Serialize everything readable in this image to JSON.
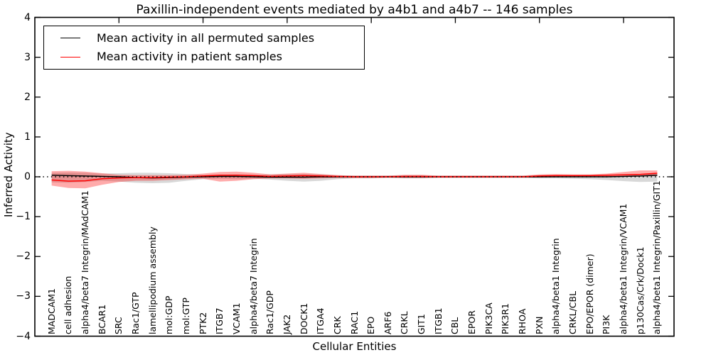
{
  "chart_data": {
    "type": "line",
    "title": "Paxillin-independent events mediated by a4b1 and a4b7 -- 146 samples",
    "xlabel": "Cellular Entities",
    "ylabel": "Inferred Activity",
    "ylim": [
      -4,
      4
    ],
    "xlim": [
      0,
      38
    ],
    "yticks": [
      -4,
      -3,
      -2,
      -1,
      0,
      1,
      2,
      3,
      4
    ],
    "xticks": [
      5,
      10,
      15,
      20,
      25,
      30,
      35
    ],
    "grid": false,
    "zero_line": {
      "y": 0,
      "style": "dotted",
      "color": "#000000"
    },
    "legend_position": "upper left",
    "categories": [
      "MADCAM1",
      "cell adhesion",
      "alpha4/beta7 Integrin/MAdCAM1",
      "BCAR1",
      "SRC",
      "Rac1/GTP",
      "lamellipodium assembly",
      "mol:GDP",
      "mol:GTP",
      "PTK2",
      "ITGB7",
      "VCAM1",
      "alpha4/beta7 Integrin",
      "Rac1/GDP",
      "JAK2",
      "DOCK1",
      "ITGA4",
      "CRK",
      "RAC1",
      "EPO",
      "ARF6",
      "CRKL",
      "GIT1",
      "ITGB1",
      "CBL",
      "EPOR",
      "PIK3CA",
      "PIK3R1",
      "RHOA",
      "PXN",
      "alpha4/beta1 Integrin",
      "CRKL/CBL",
      "EPO/EPOR (dimer)",
      "PI3K",
      "alpha4/beta1 Integrin/VCAM1",
      "p130Cas/Crk/Dock1",
      "alpha4/beta1 Integrin/Paxillin/GIT1"
    ],
    "series": [
      {
        "name": "Mean activity in all permuted samples",
        "color": "#000000",
        "band_color": "rgba(125,125,125,0.30)",
        "values": [
          0.04,
          0.03,
          0.02,
          0.01,
          0.0,
          -0.02,
          -0.03,
          -0.02,
          -0.01,
          0.0,
          0.01,
          0.01,
          0.0,
          -0.01,
          -0.01,
          -0.01,
          0.0,
          0.0,
          0.0,
          0.0,
          0.0,
          0.0,
          0.0,
          0.0,
          0.0,
          0.0,
          0.0,
          0.0,
          0.0,
          0.0,
          0.0,
          0.0,
          0.0,
          0.0,
          0.01,
          0.02,
          0.04
        ],
        "band_lo": [
          -0.14,
          -0.15,
          -0.13,
          -0.1,
          -0.12,
          -0.15,
          -0.16,
          -0.15,
          -0.1,
          -0.06,
          -0.05,
          -0.06,
          -0.05,
          -0.07,
          -0.1,
          -0.12,
          -0.1,
          -0.06,
          -0.04,
          -0.04,
          -0.03,
          -0.04,
          -0.04,
          -0.03,
          -0.03,
          -0.03,
          -0.03,
          -0.03,
          -0.03,
          -0.04,
          -0.04,
          -0.05,
          -0.06,
          -0.08,
          -0.11,
          -0.13,
          -0.12
        ],
        "band_hi": [
          0.1,
          0.11,
          0.1,
          0.08,
          0.09,
          0.1,
          0.1,
          0.09,
          0.07,
          0.05,
          0.05,
          0.06,
          0.05,
          0.06,
          0.07,
          0.07,
          0.06,
          0.04,
          0.03,
          0.03,
          0.03,
          0.04,
          0.04,
          0.03,
          0.03,
          0.03,
          0.03,
          0.03,
          0.03,
          0.04,
          0.04,
          0.04,
          0.05,
          0.05,
          0.06,
          0.07,
          0.09
        ]
      },
      {
        "name": "Mean activity in patient samples",
        "color": "#ff0000",
        "band_color": "rgba(255,0,0,0.33)",
        "values": [
          -0.08,
          -0.11,
          -0.1,
          -0.05,
          -0.03,
          -0.02,
          -0.02,
          -0.01,
          0.0,
          0.02,
          0.04,
          0.04,
          0.03,
          0.01,
          0.02,
          0.03,
          0.02,
          0.01,
          0.0,
          0.0,
          0.0,
          0.01,
          0.01,
          0.0,
          0.0,
          0.0,
          0.0,
          0.0,
          0.0,
          0.02,
          0.03,
          0.03,
          0.03,
          0.04,
          0.05,
          0.06,
          0.09
        ],
        "band_lo": [
          -0.22,
          -0.28,
          -0.29,
          -0.2,
          -0.13,
          -0.1,
          -0.1,
          -0.08,
          -0.06,
          -0.05,
          -0.12,
          -0.1,
          -0.06,
          -0.04,
          -0.04,
          -0.05,
          -0.04,
          -0.03,
          -0.03,
          -0.03,
          -0.02,
          -0.03,
          -0.03,
          -0.02,
          -0.02,
          -0.02,
          -0.02,
          -0.02,
          -0.02,
          -0.02,
          -0.01,
          -0.01,
          -0.01,
          0.0,
          0.0,
          0.01,
          0.02
        ],
        "band_hi": [
          0.14,
          0.15,
          0.13,
          0.09,
          0.05,
          0.04,
          0.04,
          0.04,
          0.05,
          0.08,
          0.12,
          0.13,
          0.1,
          0.06,
          0.08,
          0.1,
          0.07,
          0.04,
          0.03,
          0.03,
          0.03,
          0.05,
          0.05,
          0.03,
          0.03,
          0.03,
          0.03,
          0.03,
          0.03,
          0.06,
          0.07,
          0.06,
          0.06,
          0.08,
          0.12,
          0.16,
          0.16
        ]
      }
    ]
  }
}
